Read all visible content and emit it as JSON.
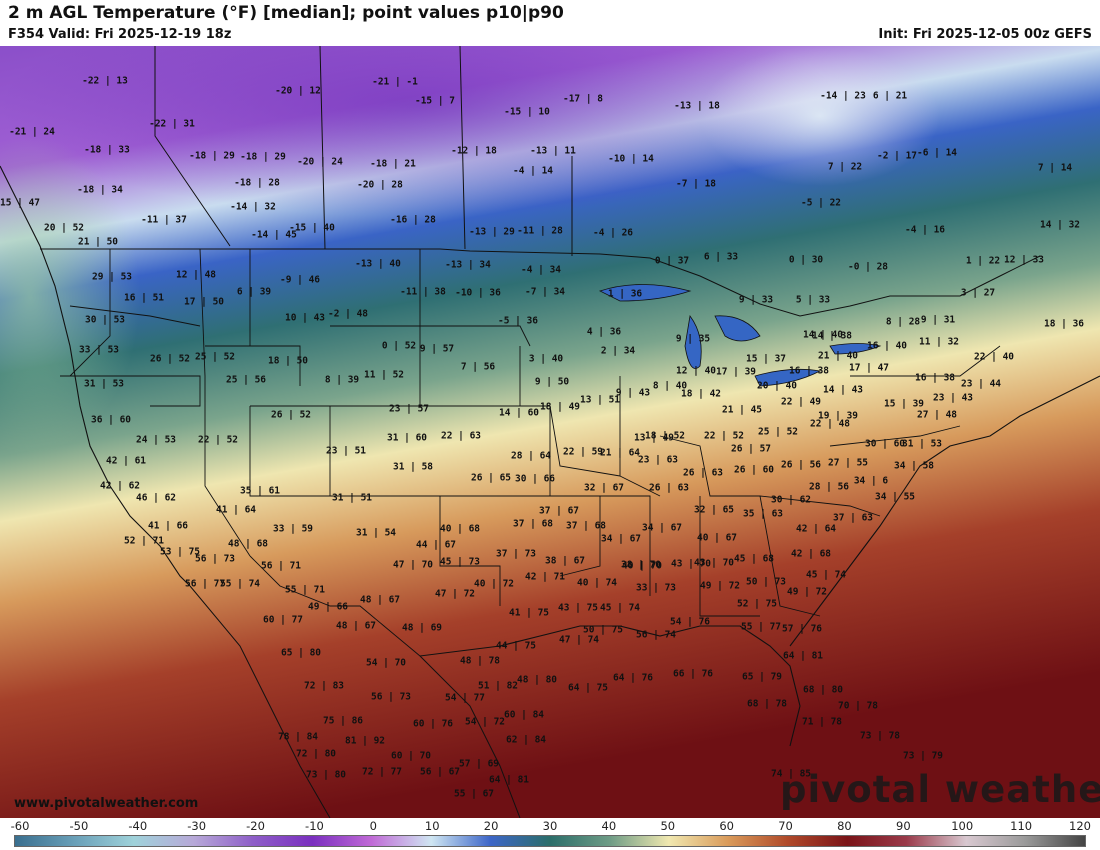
{
  "header": {
    "title": "2 m AGL Temperature (°F) [median]; point values p10|p90",
    "valid": "F354 Valid: Fri 2025-12-19 18z",
    "init": "Init: Fri 2025-12-05 00z GEFS"
  },
  "branding": {
    "logo_text": "pivotal weather",
    "website": "www.pivotalweather.com"
  },
  "colorbar": {
    "ticks": [
      "-60",
      "-50",
      "-40",
      "-30",
      "-20",
      "-10",
      "0",
      "10",
      "20",
      "30",
      "40",
      "50",
      "60",
      "70",
      "80",
      "90",
      "100",
      "110",
      "120"
    ],
    "colors": [
      "#3a6f8f",
      "#6aa0b8",
      "#9fd2da",
      "#b7a9d8",
      "#8e5fc8",
      "#7a2fbf",
      "#c06ad6",
      "#cfe6f2",
      "#3d66c8",
      "#2b6e6a",
      "#6e9c86",
      "#f0e8b0",
      "#d99a5a",
      "#b04a2a",
      "#7a1418",
      "#9a3a4a",
      "#d8c8d0",
      "#9a9a9a",
      "#444444"
    ]
  },
  "points": [
    "-22 | 13",
    "-20 | 12",
    "-21 | -1",
    "-15 | 7",
    "-17 | 8",
    "-13 | 18",
    "-14 | 23",
    "6 | 21",
    "-21 | 24",
    "-18 | 33",
    "-22 | 31",
    "-18 | 29",
    "-18 | 29",
    "-20 | 24",
    "-18 | 21",
    "-12 | 18",
    "-15 | 10",
    "-13 | 11",
    "-10 | 14",
    "-2 | 17",
    "-6 | 14",
    "-18 | 34",
    "-18 | 28",
    "-20 | 28",
    "-4 | 14",
    "-7 | 18",
    "7 | 22",
    "7 | 14",
    "15 | 47",
    "-14 | 32",
    "-11 | 37",
    "-14 | 45",
    "-15 | 40",
    "-16 | 28",
    "-13 | 29",
    "-11 | 28",
    "-4 | 26",
    "-5 | 22",
    "-4 | 16",
    "14 | 32",
    "20 | 52",
    "21 | 50",
    "29 | 53",
    "12 | 48",
    "-13 | 40",
    "-13 | 34",
    "-4 | 34",
    "0 | 37",
    "6 | 33",
    "0 | 30",
    "-0 | 28",
    "1 | 22",
    "12 | 33",
    "16 | 51",
    "17 | 50",
    "6 | 39",
    "-9 | 46",
    "-11 | 38",
    "-10 | 36",
    "-7 | 34",
    "1 | 36",
    "9 | 33",
    "5 | 33",
    "3 | 27",
    "30 | 53",
    "10 | 43",
    "-2 | 48",
    "-5 | 36",
    "4 | 36",
    "8 | 28",
    "9 | 31",
    "14 | 40",
    "18 | 36",
    "33 | 53",
    "26 | 52",
    "25 | 52",
    "18 | 50",
    "0 | 52",
    "9 | 57",
    "3 | 40",
    "2 | 34",
    "9 | 35",
    "14 | 38",
    "16 | 40",
    "11 | 32",
    "22 | 40",
    "31 | 53",
    "25 | 56",
    "8 | 39",
    "11 | 52",
    "7 | 56",
    "9 | 50",
    "12 | 40",
    "17 | 39",
    "15 | 37",
    "16 | 38",
    "21 | 40",
    "17 | 47",
    "16 | 38",
    "23 | 44",
    "36 | 60",
    "26 | 52",
    "23 | 57",
    "14 | 60",
    "18 | 49",
    "13 | 51",
    "9 | 43",
    "8 | 40",
    "18 | 42",
    "20 | 40",
    "22 | 49",
    "14 | 43",
    "15 | 39",
    "23 | 43",
    "24 | 53",
    "22 | 52",
    "31 | 60",
    "22 | 63",
    "21 | 45",
    "19 | 39",
    "22 | 48",
    "27 | 48",
    "42 | 61",
    "23 | 51",
    "28 | 64",
    "22 | 59",
    "21 | 64",
    "13 | 49",
    "18 | 52",
    "22 | 52",
    "25 | 52",
    "30 | 60",
    "31 | 53",
    "42 | 62",
    "31 | 58",
    "26 | 65",
    "30 | 66",
    "23 | 63",
    "26 | 57",
    "26 | 56",
    "27 | 55",
    "34 | 58",
    "46 | 62",
    "35 | 61",
    "31 | 51",
    "32 | 67",
    "26 | 63",
    "26 | 63",
    "26 | 60",
    "28 | 56",
    "34 | 6",
    "41 | 66",
    "41 | 64",
    "33 | 59",
    "37 | 67",
    "37 | 68",
    "37 | 68",
    "32 | 65",
    "30 | 62",
    "35 | 63",
    "34 | 55",
    "52 | 71",
    "48 | 68",
    "31 | 54",
    "40 | 68",
    "34 | 67",
    "34 | 67",
    "40 | 67",
    "42 | 64",
    "37 | 63",
    "53 | 75",
    "56 | 73",
    "44 | 67",
    "37 | 73",
    "38 | 67",
    "38 | 70",
    "43 | 70",
    "42 | 68",
    "56 | 77",
    "55 | 74",
    "56 | 71",
    "47 | 70",
    "45 | 73",
    "40 | 70",
    "43 | 70",
    "45 | 68",
    "45 | 74",
    "55 | 71",
    "48 | 67",
    "47 | 72",
    "40 | 72",
    "42 | 71",
    "40 | 74",
    "33 | 73",
    "49 | 72",
    "50 | 73",
    "49 | 72",
    "60 | 77",
    "49 | 66",
    "48 | 67",
    "48 | 69",
    "41 | 75",
    "43 | 75",
    "45 | 74",
    "52 | 75",
    "65 | 80",
    "47 | 74",
    "50 | 75",
    "56 | 74",
    "54 | 76",
    "55 | 77",
    "57 | 76",
    "72 | 83",
    "54 | 70",
    "48 | 78",
    "44 | 75",
    "51 | 82",
    "64 | 75",
    "64 | 76",
    "66 | 76",
    "64 | 81",
    "75 | 86",
    "56 | 73",
    "54 | 77",
    "48 | 80",
    "65 | 79",
    "68 | 80",
    "78 | 84",
    "81 | 92",
    "60 | 76",
    "54 | 72",
    "60 | 84",
    "68 | 78",
    "70 | 78",
    "71 | 78",
    "72 | 80",
    "60 | 70",
    "62 | 84",
    "73 | 78",
    "73 | 80",
    "72 | 77",
    "56 | 67",
    "57 | 69",
    "73 | 79",
    "64 | 81",
    "74 | 85",
    "55 | 67"
  ]
}
